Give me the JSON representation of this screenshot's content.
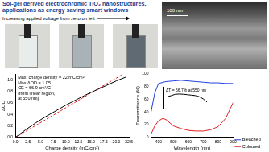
{
  "header": {
    "title": "Sol-gel derived electrochromic TiO₂ nanostructures, applications as energy saving smart windows"
  },
  "photos": {
    "caption": "Increasing applied voltage from zero on left"
  },
  "sem": {
    "scale_label": "100 nm"
  },
  "chart_data": [
    {
      "type": "line",
      "x_label": "Charge density (mC/cm²)",
      "y_label": "ΔOD",
      "annotations": [
        "Max. charge density = 22 mC/cm²",
        "Max ΔOD = 1.05",
        "CE = 66.9 cm²/C",
        "(from linear region,",
        "at 550 nm)"
      ],
      "xlim": [
        0,
        22.5
      ],
      "xticks": [
        {
          "value": 0,
          "label": "0.0"
        },
        2.5,
        {
          "value": 5,
          "label": "5.0"
        },
        7.5,
        {
          "value": 10,
          "label": "10.0"
        },
        12.5,
        {
          "value": 15,
          "label": "15.0"
        },
        17.5,
        {
          "value": 20,
          "label": "20.0"
        },
        22.5
      ],
      "ylim": [
        0,
        1.1
      ],
      "yticks": [
        {
          "value": 0,
          "label": "0.0"
        },
        0.2,
        0.4,
        0.6,
        0.8,
        {
          "value": 1,
          "label": "1.0"
        }
      ],
      "grid": false,
      "series": [
        {
          "color": "#000000",
          "line_style": "solid",
          "x": [
            0,
            2,
            4,
            6,
            8,
            10,
            12,
            14,
            16,
            18,
            20,
            22
          ],
          "values": [
            0,
            0.13,
            0.25,
            0.36,
            0.46,
            0.56,
            0.65,
            0.74,
            0.82,
            0.9,
            0.98,
            1.05
          ]
        },
        {
          "color": "#e02020",
          "line_style": "dashed",
          "x": [
            0,
            21
          ],
          "values": [
            0,
            1.08
          ]
        }
      ]
    },
    {
      "type": "line",
      "x_label": "Wavelength (nm)",
      "y_label": "Transmittance (%)",
      "xlim": [
        350,
        900
      ],
      "xticks": [
        400,
        500,
        600,
        700,
        800,
        900
      ],
      "ylim": [
        0,
        100
      ],
      "yticks": [
        0,
        20,
        40,
        60,
        80,
        100
      ],
      "grid": false,
      "legend": "lower right",
      "series": [
        {
          "name": "Bleached",
          "color": "#2040e0",
          "line_style": "solid",
          "x": [
            350,
            375,
            400,
            450,
            500,
            550,
            600,
            650,
            700,
            750,
            800,
            850,
            900
          ],
          "values": [
            40,
            70,
            85,
            88,
            89,
            90,
            89,
            88,
            87,
            86,
            86,
            85,
            85
          ]
        },
        {
          "name": "Coloured",
          "color": "#e02020",
          "line_style": "solid",
          "x": [
            350,
            375,
            400,
            430,
            450,
            500,
            550,
            600,
            650,
            700,
            750,
            800,
            850,
            900
          ],
          "values": [
            5,
            18,
            26,
            30,
            28,
            18,
            14,
            11,
            10,
            10,
            12,
            17,
            30,
            55
          ]
        }
      ]
    },
    {
      "type": "line",
      "annotations": [
        "ΔT = 66.7% at 550 nm"
      ],
      "xlim": [
        350,
        900
      ],
      "ylim": [
        0,
        100
      ],
      "tick_labels": false,
      "grid": false,
      "series": [
        {
          "color": "#000000",
          "line_style": "solid",
          "x": [
            400,
            450,
            500,
            550,
            600,
            650,
            700,
            750,
            800,
            850,
            900
          ],
          "values": [
            55,
            60,
            66,
            67,
            66,
            64,
            62,
            60,
            55,
            45,
            30
          ]
        }
      ]
    }
  ]
}
